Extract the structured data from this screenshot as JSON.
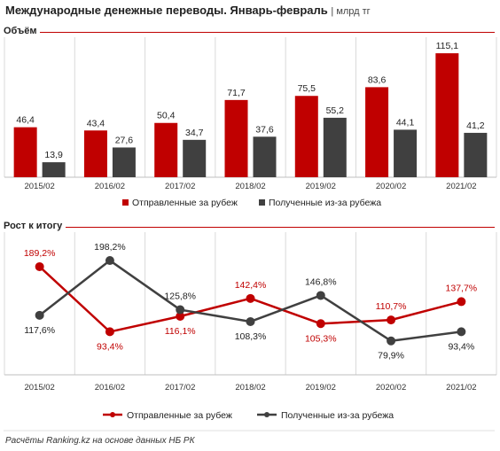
{
  "header": {
    "title": "Международные денежные переводы. Январь-февраль",
    "unit": "млрд тг"
  },
  "colors": {
    "sent": "#c00000",
    "received": "#404040",
    "rule": "#c00000"
  },
  "chart_data": [
    {
      "type": "bar",
      "section_label": "Объём",
      "categories": [
        "2015/02",
        "2016/02",
        "2017/02",
        "2018/02",
        "2019/02",
        "2020/02",
        "2021/02"
      ],
      "series": [
        {
          "name": "Отправленные за рубеж",
          "values": [
            46.4,
            43.4,
            50.4,
            71.7,
            75.5,
            83.6,
            115.1
          ],
          "labels": [
            "46,4",
            "43,4",
            "50,4",
            "71,7",
            "75,5",
            "83,6",
            "115,1"
          ]
        },
        {
          "name": "Полученные из-за рубежа",
          "values": [
            13.9,
            27.6,
            34.7,
            37.6,
            55.2,
            44.1,
            41.2
          ],
          "labels": [
            "13,9",
            "27,6",
            "34,7",
            "37,6",
            "55,2",
            "44,1",
            "41,2"
          ]
        }
      ],
      "ylim": [
        0,
        130
      ],
      "legend": "bottom"
    },
    {
      "type": "line",
      "section_label": "Рост к итогу",
      "categories": [
        "2015/02",
        "2016/02",
        "2017/02",
        "2018/02",
        "2019/02",
        "2020/02",
        "2021/02"
      ],
      "series": [
        {
          "name": "Отправленные за рубеж",
          "values": [
            189.2,
            93.4,
            116.1,
            142.4,
            105.3,
            110.7,
            137.7
          ],
          "labels": [
            "189,2%",
            "93,4%",
            "116,1%",
            "142,4%",
            "105,3%",
            "110,7%",
            "137,7%"
          ]
        },
        {
          "name": "Полученные из-за рубежа",
          "values": [
            117.6,
            198.2,
            125.8,
            108.3,
            146.8,
            79.9,
            93.4
          ],
          "labels": [
            "117,6%",
            "198,2%",
            "125,8%",
            "108,3%",
            "146,8%",
            "79,9%",
            "93,4%"
          ]
        }
      ],
      "ylim": [
        30,
        240
      ],
      "legend": "bottom"
    }
  ],
  "footer": "Расчёты Ranking.kz на основе данных НБ РК"
}
